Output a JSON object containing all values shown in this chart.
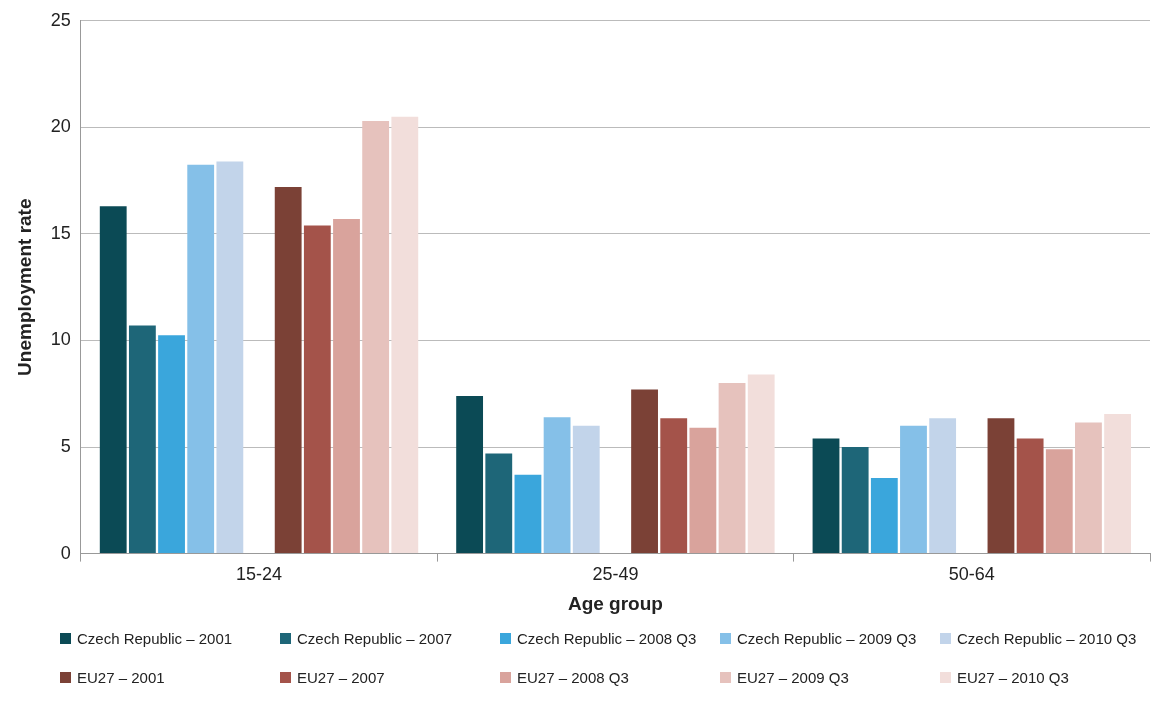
{
  "chart_data": {
    "type": "bar",
    "xlabel": "Age group",
    "ylabel": "Unemployment rate",
    "categories": [
      "15-24",
      "25-49",
      "50-64"
    ],
    "series": [
      {
        "name": "Czech Republic – 2001",
        "color": "#0b4a55",
        "values": [
          16.3,
          7.4,
          5.4
        ]
      },
      {
        "name": "Czech Republic – 2007",
        "color": "#1e6678",
        "values": [
          10.7,
          4.7,
          5.0
        ]
      },
      {
        "name": "Czech Republic – 2008 Q3",
        "color": "#3aa6dc",
        "values": [
          10.25,
          3.7,
          3.55
        ]
      },
      {
        "name": "Czech Republic – 2009 Q3",
        "color": "#85c0e8",
        "values": [
          18.25,
          6.4,
          6.0
        ]
      },
      {
        "name": "Czech Republic – 2010 Q3",
        "color": "#c2d4ea",
        "values": [
          18.4,
          6.0,
          6.35
        ]
      },
      {
        "name": "EU27 – 2001",
        "color": "#7b4136",
        "values": [
          17.2,
          7.7,
          6.35
        ]
      },
      {
        "name": "EU27 – 2007",
        "color": "#a4534a",
        "values": [
          15.4,
          6.35,
          5.4
        ]
      },
      {
        "name": "EU27 – 2008 Q3",
        "color": "#d9a39c",
        "values": [
          15.7,
          5.9,
          4.9
        ]
      },
      {
        "name": "EU27 – 2009 Q3",
        "color": "#e6c2bd",
        "values": [
          20.3,
          8.0,
          6.15
        ]
      },
      {
        "name": "EU27 – 2010 Q3",
        "color": "#f2dedb",
        "values": [
          20.5,
          8.4,
          6.55
        ]
      }
    ],
    "ylim": [
      0,
      25
    ],
    "yticks": [
      0,
      5,
      10,
      15,
      20,
      25
    ],
    "grid": "y",
    "legend": "bottom"
  }
}
